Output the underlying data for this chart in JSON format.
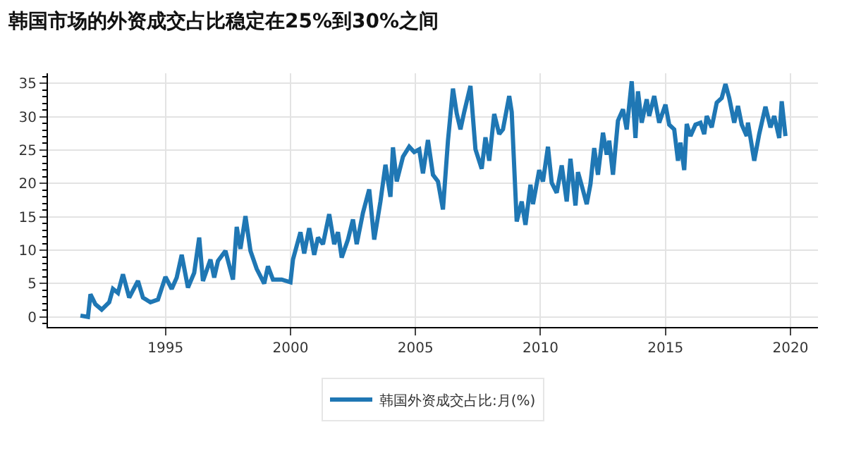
{
  "chart_data": {
    "type": "line",
    "title": "韩国市场的外资成交占比稳定在25%到30%之间",
    "x": [
      1991.6,
      1991.9,
      1992.0,
      1992.2,
      1992.45,
      1992.75,
      1992.9,
      1993.1,
      1993.3,
      1993.55,
      1993.9,
      1994.1,
      1994.4,
      1994.7,
      1995.0,
      1995.25,
      1995.45,
      1995.65,
      1995.9,
      1996.15,
      1996.35,
      1996.5,
      1996.8,
      1996.95,
      1997.1,
      1997.4,
      1997.7,
      1997.85,
      1998.0,
      1998.2,
      1998.4,
      1998.65,
      1998.95,
      1999.1,
      1999.3,
      1999.65,
      2000.0,
      2000.1,
      2000.4,
      2000.55,
      2000.75,
      2000.95,
      2001.1,
      2001.3,
      2001.55,
      2001.75,
      2001.9,
      2002.05,
      2002.3,
      2002.5,
      2002.65,
      2002.9,
      2003.15,
      2003.35,
      2003.6,
      2003.8,
      2004.0,
      2004.1,
      2004.25,
      2004.5,
      2004.75,
      2004.95,
      2005.15,
      2005.3,
      2005.5,
      2005.7,
      2005.9,
      2006.1,
      2006.3,
      2006.5,
      2006.65,
      2006.8,
      2006.95,
      2007.2,
      2007.4,
      2007.65,
      2007.8,
      2007.95,
      2008.15,
      2008.35,
      2008.5,
      2008.75,
      2008.85,
      2009.05,
      2009.25,
      2009.4,
      2009.6,
      2009.7,
      2009.95,
      2010.1,
      2010.3,
      2010.45,
      2010.65,
      2010.85,
      2011.05,
      2011.2,
      2011.4,
      2011.5,
      2011.7,
      2011.85,
      2012.0,
      2012.15,
      2012.3,
      2012.5,
      2012.65,
      2012.75,
      2012.9,
      2013.1,
      2013.3,
      2013.45,
      2013.65,
      2013.8,
      2013.9,
      2014.05,
      2014.25,
      2014.35,
      2014.55,
      2014.75,
      2015.0,
      2015.15,
      2015.35,
      2015.5,
      2015.6,
      2015.75,
      2015.85,
      2016.0,
      2016.2,
      2016.4,
      2016.55,
      2016.65,
      2016.85,
      2017.05,
      2017.25,
      2017.4,
      2017.55,
      2017.75,
      2017.9,
      2018.05,
      2018.25,
      2018.3,
      2018.55,
      2018.75,
      2019.0,
      2019.2,
      2019.35,
      2019.55,
      2019.65,
      2019.8
    ],
    "series": [
      {
        "name": "韩国外资成交占比:月(%)",
        "color": "#1f77b4",
        "values": [
          0.2,
          0,
          3.4,
          1.9,
          1.1,
          2.2,
          4.2,
          3.6,
          6.4,
          2.9,
          5.4,
          2.9,
          2.2,
          2.6,
          6.0,
          4.2,
          5.9,
          9.3,
          4.4,
          6.6,
          11.9,
          5.4,
          8.6,
          5.9,
          8.4,
          9.9,
          5.6,
          13.5,
          10.2,
          15.1,
          9.9,
          7.2,
          5.0,
          7.6,
          5.6,
          5.6,
          5.2,
          8.6,
          12.7,
          9.5,
          13.3,
          9.3,
          11.9,
          10.9,
          15.4,
          10.9,
          12.7,
          8.9,
          11.6,
          14.6,
          10.9,
          15.6,
          19.1,
          11.6,
          17.3,
          22.8,
          18.0,
          25.4,
          20.3,
          24.0,
          25.5,
          24.7,
          25.1,
          21.5,
          26.5,
          21.3,
          20.3,
          16.1,
          26.4,
          34.2,
          30.5,
          28.1,
          30.7,
          34.6,
          25.1,
          22.2,
          26.9,
          23.4,
          30.4,
          27.4,
          28.1,
          33.1,
          30.7,
          14.3,
          17.3,
          13.8,
          19.8,
          16.9,
          22.0,
          20.3,
          25.5,
          20.1,
          18.6,
          22.7,
          17.3,
          23.7,
          16.7,
          21.7,
          19.0,
          16.9,
          19.9,
          25.3,
          21.3,
          27.6,
          24.3,
          26.4,
          21.3,
          29.4,
          31.1,
          28.1,
          35.3,
          26.8,
          33.8,
          29.1,
          32.6,
          30.1,
          33.1,
          29.1,
          31.8,
          28.8,
          28.1,
          23.4,
          26.1,
          22.0,
          28.9,
          27.1,
          28.8,
          29.1,
          27.4,
          30.1,
          28.4,
          32.1,
          32.8,
          34.9,
          32.8,
          29.1,
          31.6,
          28.8,
          27.1,
          29.1,
          23.4,
          27.4,
          31.5,
          28.4,
          30.1,
          26.8,
          32.3,
          27.1
        ]
      }
    ],
    "xlim": [
      1990.3,
      2021.1
    ],
    "xticks": [
      1995,
      2000,
      2005,
      2010,
      2015,
      2020
    ],
    "ylim": [
      -1.5,
      36.5
    ],
    "yticks": [
      0,
      5,
      10,
      15,
      20,
      25,
      30,
      35
    ],
    "grid": true,
    "legend": "bottom",
    "line_style": "solid"
  }
}
